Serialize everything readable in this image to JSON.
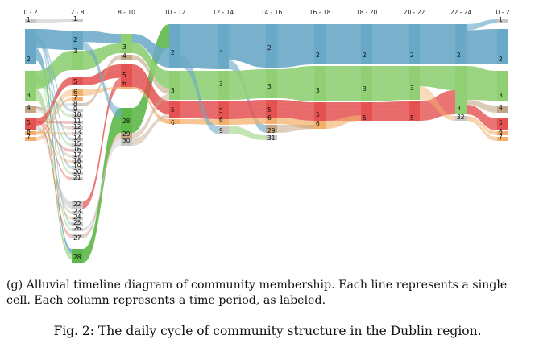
{
  "diagram": {
    "type": "alluvial",
    "columns": [
      {
        "label": "0 - 2",
        "communities": [
          "1",
          "2",
          "3",
          "4",
          "5",
          "6",
          "7"
        ]
      },
      {
        "label": "2 - 8",
        "communities": [
          "1",
          "2",
          "3",
          "5",
          "6",
          "7",
          "8",
          "9",
          "10",
          "11",
          "12",
          "13",
          "14",
          "15",
          "16",
          "17",
          "18",
          "19",
          "20",
          "21",
          "22",
          "23",
          "24",
          "25",
          "26",
          "27",
          "28"
        ]
      },
      {
        "label": "8 - 10",
        "communities": [
          "3",
          "4",
          "5",
          "6",
          "28",
          "29",
          "30"
        ]
      },
      {
        "label": "10 - 12",
        "communities": [
          "2",
          "3",
          "5",
          "6"
        ]
      },
      {
        "label": "12 - 14",
        "communities": [
          "2",
          "3",
          "5",
          "6",
          "9"
        ]
      },
      {
        "label": "14 - 16",
        "communities": [
          "2",
          "3",
          "5",
          "6",
          "29",
          "31"
        ]
      },
      {
        "label": "16 - 18",
        "communities": [
          "2",
          "3",
          "5",
          "6"
        ]
      },
      {
        "label": "18 - 20",
        "communities": [
          "2",
          "3",
          "5"
        ]
      },
      {
        "label": "20 - 22",
        "communities": [
          "2",
          "3",
          "5"
        ]
      },
      {
        "label": "22 - 24",
        "communities": [
          "2",
          "3",
          "32"
        ]
      },
      {
        "label": "0 - 2",
        "communities": [
          "1",
          "2",
          "3",
          "4",
          "5",
          "6",
          "7"
        ]
      }
    ],
    "colors": {
      "2": "#6aa8c8",
      "3": "#90cf74",
      "4": "#c2a686",
      "5": "#e55252",
      "6": "#f2b06c",
      "7": "#f2b06c",
      "28": "#5fb84a",
      "29": "#c2a686",
      "default": "#c8c8c8"
    }
  },
  "caption": {
    "subfigure": "(g) Alluvial timeline diagram of community membership. Each line represents a single cell. Each column represents a time period, as labeled.",
    "figure": "Fig. 2: The daily cycle of community structure in the Dublin region."
  }
}
